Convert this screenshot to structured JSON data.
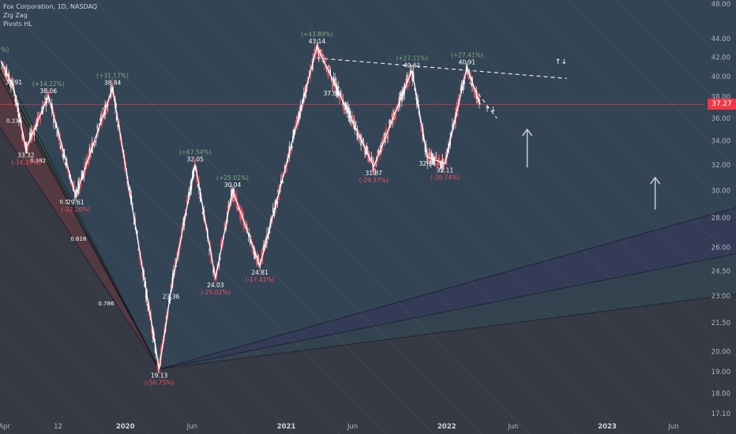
{
  "legend": {
    "title": "Fox Corporation, 1D, NASDAQ",
    "indicators": [
      "Zig Zag",
      "Pivots HL"
    ]
  },
  "colors": {
    "background": "#363a45",
    "axis_text": "#b2b5be",
    "candle_up": "#e8e8e8",
    "candle_down": "#f7525f",
    "zigzag": "#ffffff",
    "current_price": "#f23645",
    "pct_up": "#7fb07a",
    "pct_down": "#f7525f"
  },
  "current_price": "37.27",
  "chart_data": {
    "type": "candlestick",
    "title": "Fox Corporation, 1D, NASDAQ",
    "y_scale": "log",
    "ylim": [
      16.9,
      48.5
    ],
    "xlim": [
      "2019-03-22",
      "2023-08-10"
    ],
    "y_ticks": [
      "48.00",
      "44.00",
      "42.00",
      "40.00",
      "38.00",
      "36.00",
      "34.00",
      "32.00",
      "30.00",
      "28.00",
      "26.00",
      "24.50",
      "23.00",
      "21.50",
      "20.00",
      "19.00",
      "18.00",
      "17.10"
    ],
    "x_ticks": [
      {
        "label": "Apr",
        "date": "2019-04-01",
        "bold": false
      },
      {
        "label": "12",
        "date": "2019-08-01",
        "bold": false
      },
      {
        "label": "2020",
        "date": "2020-01-01",
        "bold": true
      },
      {
        "label": "Jun",
        "date": "2020-06-01",
        "bold": false
      },
      {
        "label": "2021",
        "date": "2021-01-01",
        "bold": true
      },
      {
        "label": "Jun",
        "date": "2021-06-01",
        "bold": false
      },
      {
        "label": "2022",
        "date": "2022-01-01",
        "bold": true
      },
      {
        "label": "Jun",
        "date": "2022-06-01",
        "bold": false
      },
      {
        "label": "2023",
        "date": "2023-01-01",
        "bold": true
      },
      {
        "label": "Jun",
        "date": "2023-06-01",
        "bold": false
      }
    ],
    "zigzag": [
      {
        "date": "2019-03-25",
        "price": 41.5
      },
      {
        "date": "2019-04-22",
        "price": 38.91
      },
      {
        "date": "2019-05-20",
        "price": 33.32
      },
      {
        "date": "2019-07-10",
        "price": 38.06
      },
      {
        "date": "2019-09-10",
        "price": 29.61
      },
      {
        "date": "2019-12-03",
        "price": 38.84
      },
      {
        "date": "2020-03-18",
        "price": 19.13
      },
      {
        "date": "2020-04-14",
        "price": 23.36
      },
      {
        "date": "2020-06-08",
        "price": 32.05
      },
      {
        "date": "2020-07-24",
        "price": 24.03
      },
      {
        "date": "2020-09-01",
        "price": 30.04
      },
      {
        "date": "2020-11-02",
        "price": 24.81
      },
      {
        "date": "2021-03-12",
        "price": 43.14
      },
      {
        "date": "2021-07-19",
        "price": 31.87
      },
      {
        "date": "2021-10-14",
        "price": 40.61
      },
      {
        "date": "2021-11-18",
        "price": 32.64
      },
      {
        "date": "2021-12-28",
        "price": 32.11
      },
      {
        "date": "2022-02-16",
        "price": 40.91
      },
      {
        "date": "2022-03-18",
        "price": 37.27
      }
    ],
    "annotations": [
      {
        "date": "2019-03-25",
        "price": 41.5,
        "value": "",
        "pct": "(+%)",
        "dir": "up",
        "pos": "above"
      },
      {
        "date": "2019-04-22",
        "price": 38.91,
        "value": "38.91",
        "pct": "",
        "dir": "up",
        "pos": "above"
      },
      {
        "date": "2019-05-20",
        "price": 33.32,
        "value": "33.32",
        "pct": "(-14.37%)",
        "dir": "down",
        "pos": "below"
      },
      {
        "date": "2019-07-10",
        "price": 38.06,
        "value": "38.06",
        "pct": "(+14.22%)",
        "dir": "up",
        "pos": "above"
      },
      {
        "date": "2019-09-10",
        "price": 29.61,
        "value": "29.61",
        "pct": "(-22.20%)",
        "dir": "down",
        "pos": "below"
      },
      {
        "date": "2019-12-03",
        "price": 38.84,
        "value": "38.84",
        "pct": "(+31.17%)",
        "dir": "up",
        "pos": "above"
      },
      {
        "date": "2020-03-18",
        "price": 19.13,
        "value": "19.13",
        "pct": "(-50.75%)",
        "dir": "down",
        "pos": "below"
      },
      {
        "date": "2020-04-14",
        "price": 23.36,
        "value": "23.36",
        "pct": "",
        "dir": "down",
        "pos": "below"
      },
      {
        "date": "2020-06-08",
        "price": 32.05,
        "value": "32.05",
        "pct": "(+67.54%)",
        "dir": "up",
        "pos": "above"
      },
      {
        "date": "2020-07-24",
        "price": 24.03,
        "value": "24.03",
        "pct": "(-25.02%)",
        "dir": "down",
        "pos": "below"
      },
      {
        "date": "2020-09-01",
        "price": 30.04,
        "value": "30.04",
        "pct": "(+25.01%)",
        "dir": "up",
        "pos": "above"
      },
      {
        "date": "2020-11-02",
        "price": 24.81,
        "value": "24.81",
        "pct": "(-17.41%)",
        "dir": "down",
        "pos": "below"
      },
      {
        "date": "2021-03-12",
        "price": 43.14,
        "value": "43.14",
        "pct": "(+43.89%)",
        "dir": "up",
        "pos": "above"
      },
      {
        "date": "2021-04-15",
        "price": 37.84,
        "value": "37.84",
        "pct": "",
        "dir": "up",
        "pos": "above"
      },
      {
        "date": "2021-07-19",
        "price": 31.87,
        "value": "31.87",
        "pct": "(-24.37%)",
        "dir": "down",
        "pos": "below"
      },
      {
        "date": "2021-10-14",
        "price": 40.61,
        "value": "40.61",
        "pct": "(+27.11%)",
        "dir": "up",
        "pos": "above"
      },
      {
        "date": "2021-11-18",
        "price": 32.64,
        "value": "32.64",
        "pct": "",
        "dir": "down",
        "pos": "below"
      },
      {
        "date": "2021-12-28",
        "price": 32.11,
        "value": "32.11",
        "pct": "(-20.74%)",
        "dir": "down",
        "pos": "below"
      },
      {
        "date": "2022-02-16",
        "price": 40.91,
        "value": "40.91",
        "pct": "(+27.41%)",
        "dir": "up",
        "pos": "above"
      }
    ],
    "fib_levels": [
      {
        "label": "0",
        "date": "2019-03-22",
        "price": 41.5
      },
      {
        "label": "0.236",
        "date": "2019-05-15",
        "price": 35.8
      },
      {
        "label": "0.382",
        "date": "2019-07-08",
        "price": 32.4
      },
      {
        "label": "0.5",
        "date": "2019-08-28",
        "price": 29.2
      },
      {
        "label": "0.618",
        "date": "2019-10-08",
        "price": 26.6
      },
      {
        "label": "0.786",
        "date": "2019-12-10",
        "price": 22.6
      }
    ],
    "dashed_lines": [
      {
        "from": {
          "date": "2021-03-12",
          "price": 41.9
        },
        "to": {
          "date": "2022-10-01",
          "price": 39.8
        }
      },
      {
        "from": {
          "date": "2022-02-22",
          "price": 39.4
        },
        "to": {
          "date": "2022-04-25",
          "price": 36.0
        }
      }
    ],
    "arrows": [
      {
        "date": "2022-07-03",
        "price": 31.8,
        "price_top": 35.0
      },
      {
        "date": "2023-04-20",
        "price": 28.6,
        "price_top": 31.0
      }
    ],
    "arrow_symbols": [
      {
        "date": "2022-09-18",
        "price": 41.3,
        "text": "↑↓"
      },
      {
        "date": "2022-04-10",
        "price": 36.6,
        "text": "↑↓"
      }
    ]
  }
}
